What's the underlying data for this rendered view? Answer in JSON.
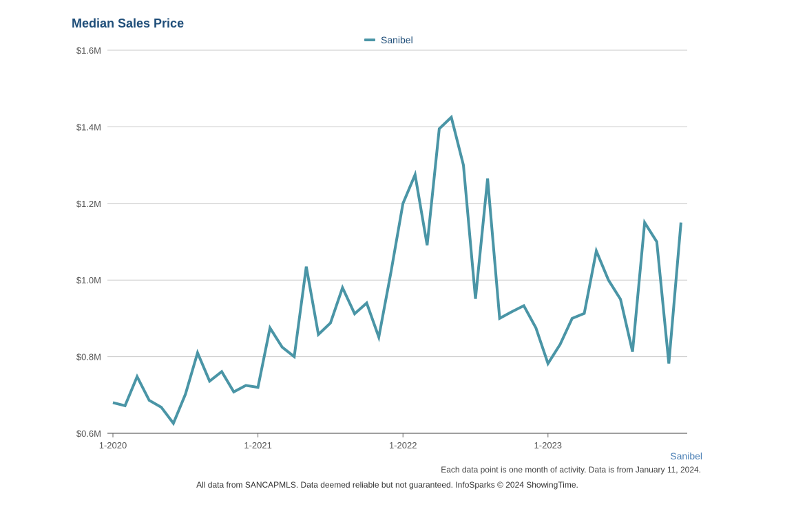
{
  "chart_data": {
    "type": "line",
    "title": "Median Sales Price",
    "xlabel": "",
    "ylabel": "",
    "ylim": [
      600000,
      1600000
    ],
    "y_ticks": [
      "$0.6M",
      "$0.8M",
      "$1.0M",
      "$1.2M",
      "$1.4M",
      "$1.6M"
    ],
    "y_tick_values": [
      600000,
      800000,
      1000000,
      1200000,
      1400000,
      1600000
    ],
    "x_ticks": [
      "1-2020",
      "1-2021",
      "1-2022",
      "1-2023"
    ],
    "legend": "top-center",
    "grid": true,
    "series": [
      {
        "name": "Sanibel",
        "color": "#4a95a6",
        "values": [
          680000,
          672000,
          748000,
          686000,
          668000,
          626000,
          702000,
          810000,
          736000,
          761000,
          708000,
          725000,
          720000,
          875000,
          825000,
          800000,
          1035000,
          858000,
          888000,
          980000,
          912000,
          940000,
          851000,
          1020000,
          1200000,
          1275000,
          1091000,
          1395000,
          1425000,
          1300000,
          951000,
          1265000,
          900000,
          917000,
          933000,
          875000,
          782000,
          832000,
          900000,
          913000,
          1076000,
          1000000,
          950000,
          813000,
          1150000,
          1100000,
          782000,
          1150000
        ]
      }
    ]
  },
  "legend_label": "Sanibel",
  "region_label": "Sanibel",
  "note": "Each data point is one month of activity. Data is from January 11, 2024.",
  "source": "All data from SANCAPMLS. Data deemed reliable but not guaranteed. InfoSparks © 2024 ShowingTime."
}
